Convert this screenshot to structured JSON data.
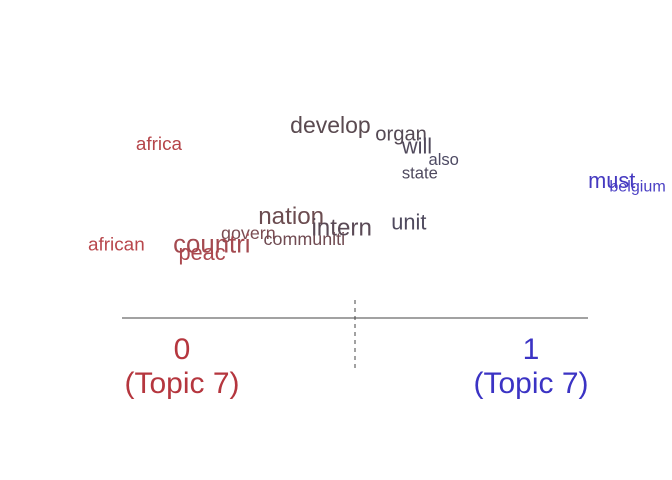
{
  "chart_data": {
    "type": "scatter",
    "subtype": "word-topic-contrast",
    "title": "",
    "xlim": [
      0,
      1
    ],
    "axis_labels": {
      "left": {
        "value": "0",
        "sub": "(Topic 7)",
        "color": "#b5363e"
      },
      "right": {
        "value": "1",
        "sub": "(Topic 7)",
        "color": "#3b33c4"
      }
    },
    "midline": 0.5,
    "words": [
      {
        "text": "develop",
        "x": 0.38,
        "y": 0.88,
        "size": 1.0,
        "color": "#5a4a50"
      },
      {
        "text": "organ",
        "x": 0.54,
        "y": 0.84,
        "size": 0.88,
        "color": "#554a55"
      },
      {
        "text": "will",
        "x": 0.59,
        "y": 0.77,
        "size": 0.95,
        "color": "#514a5c"
      },
      {
        "text": "also",
        "x": 0.64,
        "y": 0.71,
        "size": 0.72,
        "color": "#4d4a63"
      },
      {
        "text": "state",
        "x": 0.59,
        "y": 0.64,
        "size": 0.72,
        "color": "#4f4a5f"
      },
      {
        "text": "africa",
        "x": 0.09,
        "y": 0.79,
        "size": 0.82,
        "color": "#b5454a"
      },
      {
        "text": "must",
        "x": 0.94,
        "y": 0.59,
        "size": 0.95,
        "color": "#4539c0"
      },
      {
        "text": "belgium",
        "x": 0.98,
        "y": 0.57,
        "size": 0.7,
        "color": "#4a3fc4"
      },
      {
        "text": "nation",
        "x": 0.32,
        "y": 0.4,
        "size": 1.05,
        "color": "#6b4c50"
      },
      {
        "text": "unit",
        "x": 0.57,
        "y": 0.37,
        "size": 0.95,
        "color": "#4f4a5e"
      },
      {
        "text": "intern",
        "x": 0.42,
        "y": 0.34,
        "size": 1.05,
        "color": "#5a4a56"
      },
      {
        "text": "govern",
        "x": 0.25,
        "y": 0.32,
        "size": 0.78,
        "color": "#7a4c52"
      },
      {
        "text": "communiti",
        "x": 0.33,
        "y": 0.29,
        "size": 0.78,
        "color": "#704b52"
      },
      {
        "text": "african",
        "x": 0.0,
        "y": 0.26,
        "size": 0.82,
        "color": "#b8474c"
      },
      {
        "text": "countri",
        "x": 0.16,
        "y": 0.25,
        "size": 1.12,
        "color": "#a44a50"
      },
      {
        "text": "peac",
        "x": 0.17,
        "y": 0.21,
        "size": 0.95,
        "color": "#ab484e"
      }
    ]
  }
}
